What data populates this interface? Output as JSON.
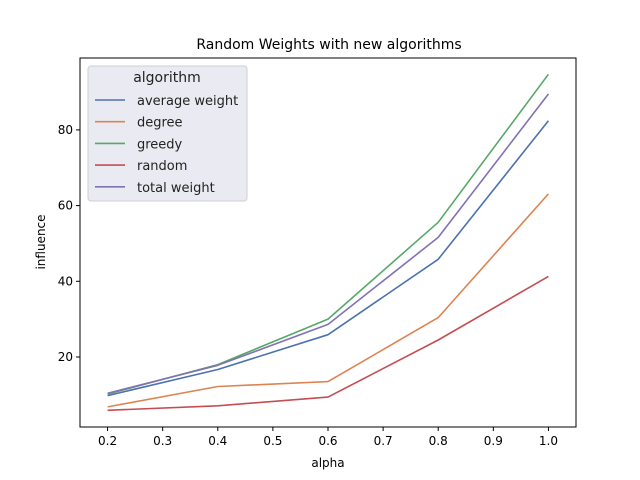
{
  "chart_data": {
    "type": "line",
    "title": "Random Weights with new algorithms",
    "xlabel": "alpha",
    "ylabel": "influence",
    "x": [
      0.2,
      0.4,
      0.6,
      0.8,
      1.0
    ],
    "xlim": [
      0.15,
      1.05
    ],
    "ylim": [
      1.5,
      99
    ],
    "xticks": [
      0.2,
      0.3,
      0.4,
      0.5,
      0.6,
      0.7,
      0.8,
      0.9,
      1.0
    ],
    "xtick_labels": [
      "0.2",
      "0.3",
      "0.4",
      "0.5",
      "0.6",
      "0.7",
      "0.8",
      "0.9",
      "1.0"
    ],
    "yticks": [
      20,
      40,
      60,
      80
    ],
    "ytick_labels": [
      "20",
      "40",
      "60",
      "80"
    ],
    "grid": false,
    "legend": {
      "title": "algorithm",
      "position": "top-left"
    },
    "series": [
      {
        "name": "average weight",
        "color": "#4c72b0",
        "values": [
          9.8,
          16.7,
          25.9,
          45.8,
          82.4
        ]
      },
      {
        "name": "degree",
        "color": "#dd8452",
        "values": [
          6.8,
          12.2,
          13.5,
          30.4,
          63.1
        ]
      },
      {
        "name": "greedy",
        "color": "#55a868",
        "values": [
          10.2,
          18.0,
          30.0,
          55.6,
          94.7
        ]
      },
      {
        "name": "random",
        "color": "#c44e52",
        "values": [
          5.9,
          7.1,
          9.4,
          24.5,
          41.3
        ]
      },
      {
        "name": "total weight",
        "color": "#8172b3",
        "values": [
          10.4,
          17.8,
          28.6,
          51.6,
          89.5
        ]
      }
    ]
  }
}
